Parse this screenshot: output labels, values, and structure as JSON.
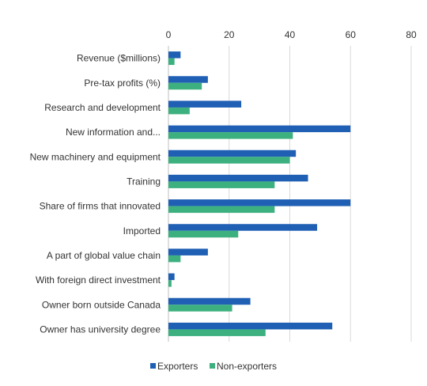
{
  "chart_data": {
    "type": "bar",
    "orientation": "horizontal",
    "categories": [
      "Revenue ($millions)",
      "Pre-tax profits (%)",
      "Research and development",
      "New information and...",
      "New machinery and equipment",
      "Training",
      "Share of firms that innovated",
      "Imported",
      "A part of global value chain",
      "With foreign direct investment",
      "Owner born outside Canada",
      "Owner has university degree"
    ],
    "series": [
      {
        "name": "Exporters",
        "color": "#1f5fb4",
        "values": [
          4,
          13,
          24,
          60,
          42,
          46,
          60,
          49,
          13,
          2,
          27,
          54
        ]
      },
      {
        "name": "Non-exporters",
        "color": "#3db07f",
        "values": [
          2,
          11,
          7,
          41,
          40,
          35,
          35,
          23,
          4,
          1,
          21,
          32
        ]
      }
    ],
    "xlim": [
      0,
      80
    ],
    "xticks": [
      0,
      20,
      40,
      60,
      80
    ],
    "xaxis_position": "top",
    "grid": true,
    "legend_position": "bottom"
  }
}
